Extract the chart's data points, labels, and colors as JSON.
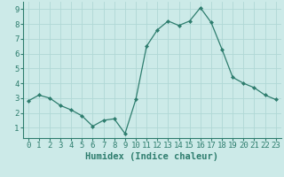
{
  "x": [
    0,
    1,
    2,
    3,
    4,
    5,
    6,
    7,
    8,
    9,
    10,
    11,
    12,
    13,
    14,
    15,
    16,
    17,
    18,
    19,
    20,
    21,
    22,
    23
  ],
  "y": [
    2.8,
    3.2,
    3.0,
    2.5,
    2.2,
    1.8,
    1.1,
    1.5,
    1.6,
    0.6,
    2.9,
    6.5,
    7.6,
    8.2,
    7.9,
    8.2,
    9.1,
    8.1,
    6.3,
    4.4,
    4.0,
    3.7,
    3.2,
    2.9
  ],
  "line_color": "#2e7d6e",
  "marker_color": "#2e7d6e",
  "bg_color": "#cceae8",
  "grid_color": "#b0d8d5",
  "xlabel": "Humidex (Indice chaleur)",
  "xlabel_fontsize": 7.5,
  "tick_fontsize": 6.5,
  "ylim": [
    0.3,
    9.5
  ],
  "xlim": [
    -0.5,
    23.5
  ],
  "yticks": [
    1,
    2,
    3,
    4,
    5,
    6,
    7,
    8,
    9
  ],
  "xticks": [
    0,
    1,
    2,
    3,
    4,
    5,
    6,
    7,
    8,
    9,
    10,
    11,
    12,
    13,
    14,
    15,
    16,
    17,
    18,
    19,
    20,
    21,
    22,
    23
  ]
}
